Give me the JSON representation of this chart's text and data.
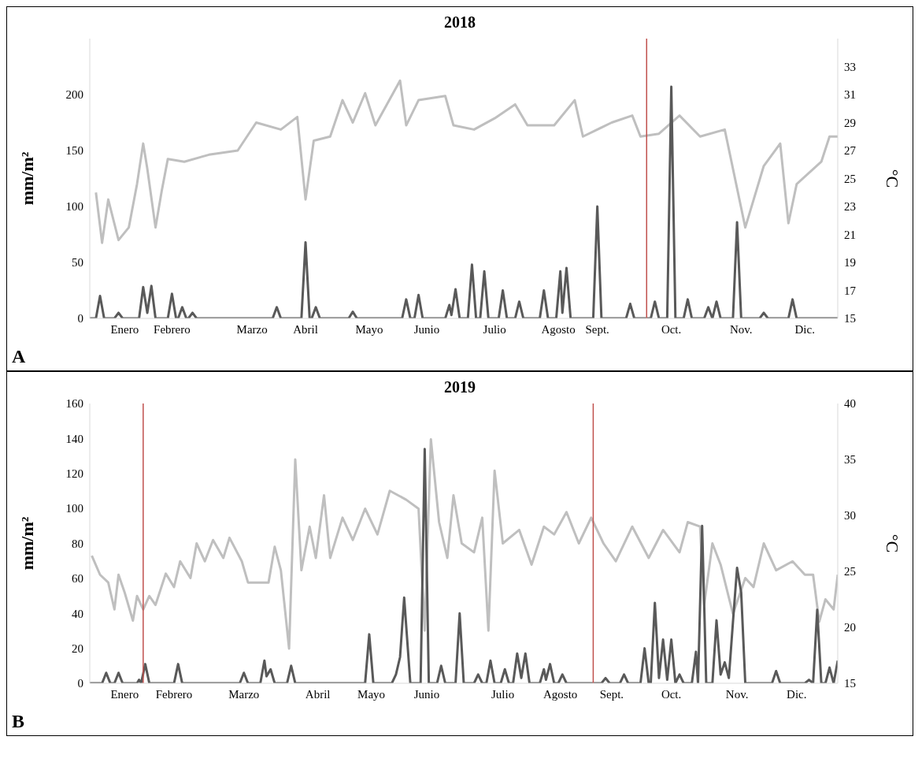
{
  "chart_data": [
    {
      "type": "line",
      "title": "2018",
      "ylabel": "mm/m²",
      "y2label": "°C",
      "annotations": [
        "A"
      ],
      "xlim": [
        "2018-01-01",
        "2018-12-31"
      ],
      "xticks": [
        {
          "value": "2018-01-18",
          "label": "Enero"
        },
        {
          "value": "2018-02-10",
          "label": "Febrero"
        },
        {
          "value": "2018-03-21",
          "label": "Marzo"
        },
        {
          "value": "2018-04-16",
          "label": "Abril"
        },
        {
          "value": "2018-05-17",
          "label": "Mayo"
        },
        {
          "value": "2018-06-14",
          "label": "Junio"
        },
        {
          "value": "2018-07-17",
          "label": "Julio"
        },
        {
          "value": "2018-08-17",
          "label": "Agosto"
        },
        {
          "value": "2018-09-05",
          "label": "Sept."
        },
        {
          "value": "2018-10-11",
          "label": "Oct."
        },
        {
          "value": "2018-11-14",
          "label": "Nov."
        },
        {
          "value": "2018-12-15",
          "label": "Dic."
        }
      ],
      "ylim": [
        0,
        250
      ],
      "yticks": [
        0,
        50,
        100,
        150,
        200
      ],
      "y2lim": [
        15,
        35
      ],
      "y2ticks": [
        15,
        17,
        19,
        21,
        23,
        25,
        27,
        29,
        31,
        33
      ],
      "series": [
        {
          "color": "#bfbfbf",
          "axis": "y2",
          "x": [
            "2018-01-04",
            "2018-01-07",
            "2018-01-10",
            "2018-01-15",
            "2018-01-20",
            "2018-01-24",
            "2018-01-27",
            "2018-01-29",
            "2018-02-02",
            "2018-02-05",
            "2018-02-08",
            "2018-02-16",
            "2018-02-28",
            "2018-03-14",
            "2018-03-23",
            "2018-04-04",
            "2018-04-12",
            "2018-04-16",
            "2018-04-20",
            "2018-04-28",
            "2018-05-04",
            "2018-05-09",
            "2018-05-15",
            "2018-05-20",
            "2018-06-01",
            "2018-06-04",
            "2018-06-10",
            "2018-06-23",
            "2018-06-27",
            "2018-07-07",
            "2018-07-17",
            "2018-07-27",
            "2018-08-02",
            "2018-08-15",
            "2018-08-25",
            "2018-08-29",
            "2018-09-12",
            "2018-09-22",
            "2018-09-26",
            "2018-10-05",
            "2018-10-15",
            "2018-10-25",
            "2018-11-06",
            "2018-11-16",
            "2018-11-25",
            "2018-12-03",
            "2018-12-07",
            "2018-12-11",
            "2018-12-23",
            "2018-12-27",
            "2018-12-31"
          ],
          "values": [
            24.0,
            20.4,
            23.5,
            20.6,
            21.5,
            24.6,
            27.5,
            25.7,
            21.5,
            24.1,
            26.4,
            26.2,
            26.7,
            27.0,
            29.0,
            28.5,
            29.4,
            23.5,
            27.7,
            28.0,
            30.6,
            29.0,
            31.1,
            28.8,
            32.0,
            28.8,
            30.6,
            30.9,
            28.8,
            28.5,
            29.3,
            30.3,
            28.8,
            28.8,
            30.6,
            28.0,
            29.0,
            29.5,
            28.0,
            28.2,
            29.5,
            28.0,
            28.5,
            21.5,
            25.9,
            27.5,
            21.8,
            24.6,
            26.2,
            28.0,
            28.0
          ]
        },
        {
          "color": "#595959",
          "x": [
            "2018-01-01",
            "2018-01-04",
            "2018-01-06",
            "2018-01-08",
            "2018-01-13",
            "2018-01-15",
            "2018-01-17",
            "2018-01-25",
            "2018-01-27",
            "2018-01-29",
            "2018-01-31",
            "2018-02-02",
            "2018-02-08",
            "2018-02-10",
            "2018-02-12",
            "2018-02-13",
            "2018-02-15",
            "2018-02-17",
            "2018-02-18",
            "2018-02-20",
            "2018-02-22",
            "2018-03-31",
            "2018-04-02",
            "2018-04-04",
            "2018-04-14",
            "2018-04-16",
            "2018-04-18",
            "2018-04-19",
            "2018-04-21",
            "2018-04-23",
            "2018-05-07",
            "2018-05-09",
            "2018-05-11",
            "2018-06-02",
            "2018-06-04",
            "2018-06-06",
            "2018-06-08",
            "2018-06-10",
            "2018-06-12",
            "2018-06-23",
            "2018-06-25",
            "2018-06-26",
            "2018-06-28",
            "2018-06-30",
            "2018-07-04",
            "2018-07-06",
            "2018-07-08",
            "2018-07-10",
            "2018-07-12",
            "2018-07-14",
            "2018-07-19",
            "2018-07-21",
            "2018-07-23",
            "2018-07-27",
            "2018-07-29",
            "2018-07-31",
            "2018-08-08",
            "2018-08-10",
            "2018-08-12",
            "2018-08-16",
            "2018-08-18",
            "2018-08-19",
            "2018-08-21",
            "2018-08-23",
            "2018-09-03",
            "2018-09-05",
            "2018-09-07",
            "2018-09-19",
            "2018-09-21",
            "2018-09-23",
            "2018-10-01",
            "2018-10-03",
            "2018-10-05",
            "2018-10-09",
            "2018-10-11",
            "2018-10-13",
            "2018-10-17",
            "2018-10-19",
            "2018-10-21",
            "2018-10-27",
            "2018-10-29",
            "2018-10-31",
            "2018-11-02",
            "2018-11-04",
            "2018-11-10",
            "2018-11-12",
            "2018-11-14",
            "2018-11-23",
            "2018-11-25",
            "2018-11-27",
            "2018-12-07",
            "2018-12-09",
            "2018-12-11",
            "2018-12-31"
          ],
          "values": [
            0,
            0,
            20,
            0,
            0,
            5,
            0,
            0,
            28,
            5,
            29,
            0,
            0,
            22,
            0,
            0,
            10,
            0,
            0,
            5,
            0,
            0,
            10,
            0,
            0,
            68,
            0,
            0,
            10,
            0,
            0,
            6,
            0,
            0,
            17,
            0,
            0,
            21,
            0,
            0,
            12,
            3,
            26,
            0,
            0,
            48,
            0,
            0,
            42,
            0,
            0,
            25,
            0,
            0,
            15,
            0,
            0,
            25,
            0,
            0,
            42,
            5,
            45,
            0,
            0,
            100,
            0,
            0,
            13,
            0,
            0,
            15,
            0,
            0,
            207,
            0,
            0,
            17,
            0,
            0,
            10,
            0,
            15,
            0,
            0,
            86,
            0,
            0,
            5,
            0,
            0,
            17,
            0,
            0
          ]
        }
      ],
      "ref_lines": [
        {
          "axis": "x",
          "value": "2018-09-29",
          "color": "#c0504d"
        }
      ]
    },
    {
      "type": "line",
      "title": "2019",
      "ylabel": "mm/m²",
      "y2label": "°C",
      "annotations": [
        "B"
      ],
      "xlim": [
        "2019-01-01",
        "2019-12-31"
      ],
      "xticks": [
        {
          "value": "2019-01-18",
          "label": "Enero"
        },
        {
          "value": "2019-02-11",
          "label": "Febrero"
        },
        {
          "value": "2019-03-17",
          "label": "Marzo"
        },
        {
          "value": "2019-04-22",
          "label": "Abril"
        },
        {
          "value": "2019-05-18",
          "label": "Mayo"
        },
        {
          "value": "2019-06-14",
          "label": "Junio"
        },
        {
          "value": "2019-07-21",
          "label": "Julio"
        },
        {
          "value": "2019-08-18",
          "label": "Agosto"
        },
        {
          "value": "2019-09-12",
          "label": "Sept."
        },
        {
          "value": "2019-10-11",
          "label": "Oct."
        },
        {
          "value": "2019-11-12",
          "label": "Nov."
        },
        {
          "value": "2019-12-11",
          "label": "Dic."
        }
      ],
      "ylim": [
        0,
        160
      ],
      "yticks": [
        0,
        20,
        40,
        60,
        80,
        100,
        120,
        140,
        160
      ],
      "y2lim": [
        15,
        40
      ],
      "y2ticks": [
        15,
        20,
        25,
        30,
        35,
        40
      ],
      "series": [
        {
          "color": "#bfbfbf",
          "axis": "y2",
          "x": [
            "2019-01-02",
            "2019-01-06",
            "2019-01-10",
            "2019-01-13",
            "2019-01-15",
            "2019-01-18",
            "2019-01-22",
            "2019-01-24",
            "2019-01-27",
            "2019-01-30",
            "2019-02-02",
            "2019-02-07",
            "2019-02-11",
            "2019-02-14",
            "2019-02-19",
            "2019-02-22",
            "2019-02-26",
            "2019-03-02",
            "2019-03-07",
            "2019-03-10",
            "2019-03-16",
            "2019-03-19",
            "2019-03-23",
            "2019-03-29",
            "2019-04-01",
            "2019-04-04",
            "2019-04-08",
            "2019-04-11",
            "2019-04-14",
            "2019-04-18",
            "2019-04-21",
            "2019-04-25",
            "2019-04-28",
            "2019-05-04",
            "2019-05-09",
            "2019-05-15",
            "2019-05-21",
            "2019-05-27",
            "2019-06-04",
            "2019-06-10",
            "2019-06-13",
            "2019-06-16",
            "2019-06-20",
            "2019-06-24",
            "2019-06-27",
            "2019-07-01",
            "2019-07-07",
            "2019-07-11",
            "2019-07-14",
            "2019-07-17",
            "2019-07-21",
            "2019-07-29",
            "2019-08-04",
            "2019-08-10",
            "2019-08-15",
            "2019-08-21",
            "2019-08-27",
            "2019-09-02",
            "2019-09-08",
            "2019-09-14",
            "2019-09-22",
            "2019-09-30",
            "2019-10-07",
            "2019-10-15",
            "2019-10-19",
            "2019-10-25",
            "2019-10-27",
            "2019-10-31",
            "2019-11-04",
            "2019-11-10",
            "2019-11-16",
            "2019-11-20",
            "2019-11-25",
            "2019-12-01",
            "2019-12-09",
            "2019-12-15",
            "2019-12-19",
            "2019-12-22",
            "2019-12-25",
            "2019-12-29",
            "2019-12-31"
          ],
          "values": [
            26.4,
            24.7,
            24.0,
            21.6,
            24.7,
            23.1,
            20.6,
            22.8,
            21.6,
            22.8,
            22.0,
            24.8,
            23.6,
            25.9,
            24.4,
            27.5,
            25.9,
            27.8,
            26.2,
            28.0,
            25.9,
            24.0,
            24.0,
            24.0,
            27.2,
            25.1,
            18.1,
            35.0,
            25.1,
            29.0,
            26.2,
            31.8,
            26.2,
            29.8,
            27.8,
            30.6,
            28.3,
            32.2,
            31.4,
            30.6,
            19.7,
            36.8,
            29.4,
            26.2,
            31.8,
            27.5,
            26.7,
            29.8,
            19.7,
            34.0,
            27.5,
            28.7,
            25.6,
            29.0,
            28.3,
            30.3,
            27.5,
            29.8,
            27.5,
            25.9,
            29.0,
            26.2,
            28.7,
            26.7,
            29.4,
            29.0,
            22.0,
            27.5,
            25.6,
            21.2,
            24.4,
            23.6,
            27.5,
            25.1,
            25.9,
            24.7,
            24.7,
            20.5,
            22.5,
            21.6,
            24.7
          ]
        },
        {
          "color": "#595959",
          "x": [
            "2019-01-01",
            "2019-01-07",
            "2019-01-09",
            "2019-01-11",
            "2019-01-13",
            "2019-01-15",
            "2019-01-17",
            "2019-01-24",
            "2019-01-25",
            "2019-01-26",
            "2019-01-28",
            "2019-01-30",
            "2019-02-11",
            "2019-02-13",
            "2019-02-15",
            "2019-03-15",
            "2019-03-17",
            "2019-03-19",
            "2019-03-25",
            "2019-03-27",
            "2019-03-28",
            "2019-03-30",
            "2019-04-01",
            "2019-04-07",
            "2019-04-09",
            "2019-04-11",
            "2019-05-15",
            "2019-05-17",
            "2019-05-19",
            "2019-05-28",
            "2019-05-30",
            "2019-06-01",
            "2019-06-03",
            "2019-06-06",
            "2019-06-11",
            "2019-06-13",
            "2019-06-15",
            "2019-06-19",
            "2019-06-21",
            "2019-06-23",
            "2019-06-28",
            "2019-06-30",
            "2019-07-02",
            "2019-07-07",
            "2019-07-09",
            "2019-07-11",
            "2019-07-13",
            "2019-07-15",
            "2019-07-17",
            "2019-07-20",
            "2019-07-22",
            "2019-07-24",
            "2019-07-26",
            "2019-07-28",
            "2019-07-30",
            "2019-08-01",
            "2019-08-03",
            "2019-08-08",
            "2019-08-10",
            "2019-08-11",
            "2019-08-13",
            "2019-08-15",
            "2019-08-17",
            "2019-08-19",
            "2019-08-21",
            "2019-09-07",
            "2019-09-09",
            "2019-09-11",
            "2019-09-16",
            "2019-09-18",
            "2019-09-20",
            "2019-09-26",
            "2019-09-28",
            "2019-09-30",
            "2019-10-01",
            "2019-10-03",
            "2019-10-05",
            "2019-10-07",
            "2019-10-09",
            "2019-10-11",
            "2019-10-13",
            "2019-10-15",
            "2019-10-17",
            "2019-10-21",
            "2019-10-23",
            "2019-10-24",
            "2019-10-26",
            "2019-10-28",
            "2019-10-31",
            "2019-11-02",
            "2019-11-04",
            "2019-11-06",
            "2019-11-08",
            "2019-11-10",
            "2019-11-12",
            "2019-11-14",
            "2019-11-16",
            "2019-11-29",
            "2019-12-01",
            "2019-12-03",
            "2019-12-15",
            "2019-12-17",
            "2019-12-19",
            "2019-12-21",
            "2019-12-23",
            "2019-12-25",
            "2019-12-27",
            "2019-12-29",
            "2019-12-31"
          ],
          "values": [
            0,
            0,
            6,
            0,
            0,
            6,
            0,
            0,
            2,
            0,
            11,
            0,
            0,
            11,
            0,
            0,
            6,
            0,
            0,
            13,
            4,
            8,
            0,
            0,
            10,
            0,
            0,
            28,
            0,
            0,
            5,
            15,
            49,
            0,
            0,
            134,
            0,
            0,
            10,
            0,
            0,
            40,
            0,
            0,
            5,
            0,
            0,
            13,
            0,
            0,
            8,
            0,
            0,
            17,
            3,
            17,
            0,
            0,
            8,
            2,
            11,
            0,
            0,
            5,
            0,
            0,
            3,
            0,
            0,
            5,
            0,
            0,
            20,
            0,
            0,
            46,
            3,
            25,
            2,
            25,
            0,
            5,
            0,
            0,
            18,
            0,
            90,
            0,
            0,
            36,
            5,
            12,
            3,
            35,
            66,
            52,
            0,
            0,
            7,
            0,
            0,
            2,
            0,
            42,
            0,
            0,
            9,
            0,
            13
          ]
        }
      ],
      "ref_lines": [
        {
          "axis": "x",
          "value": "2019-01-27",
          "color": "#c0504d"
        },
        {
          "axis": "x",
          "value": "2019-09-03",
          "color": "#c0504d"
        }
      ]
    }
  ]
}
